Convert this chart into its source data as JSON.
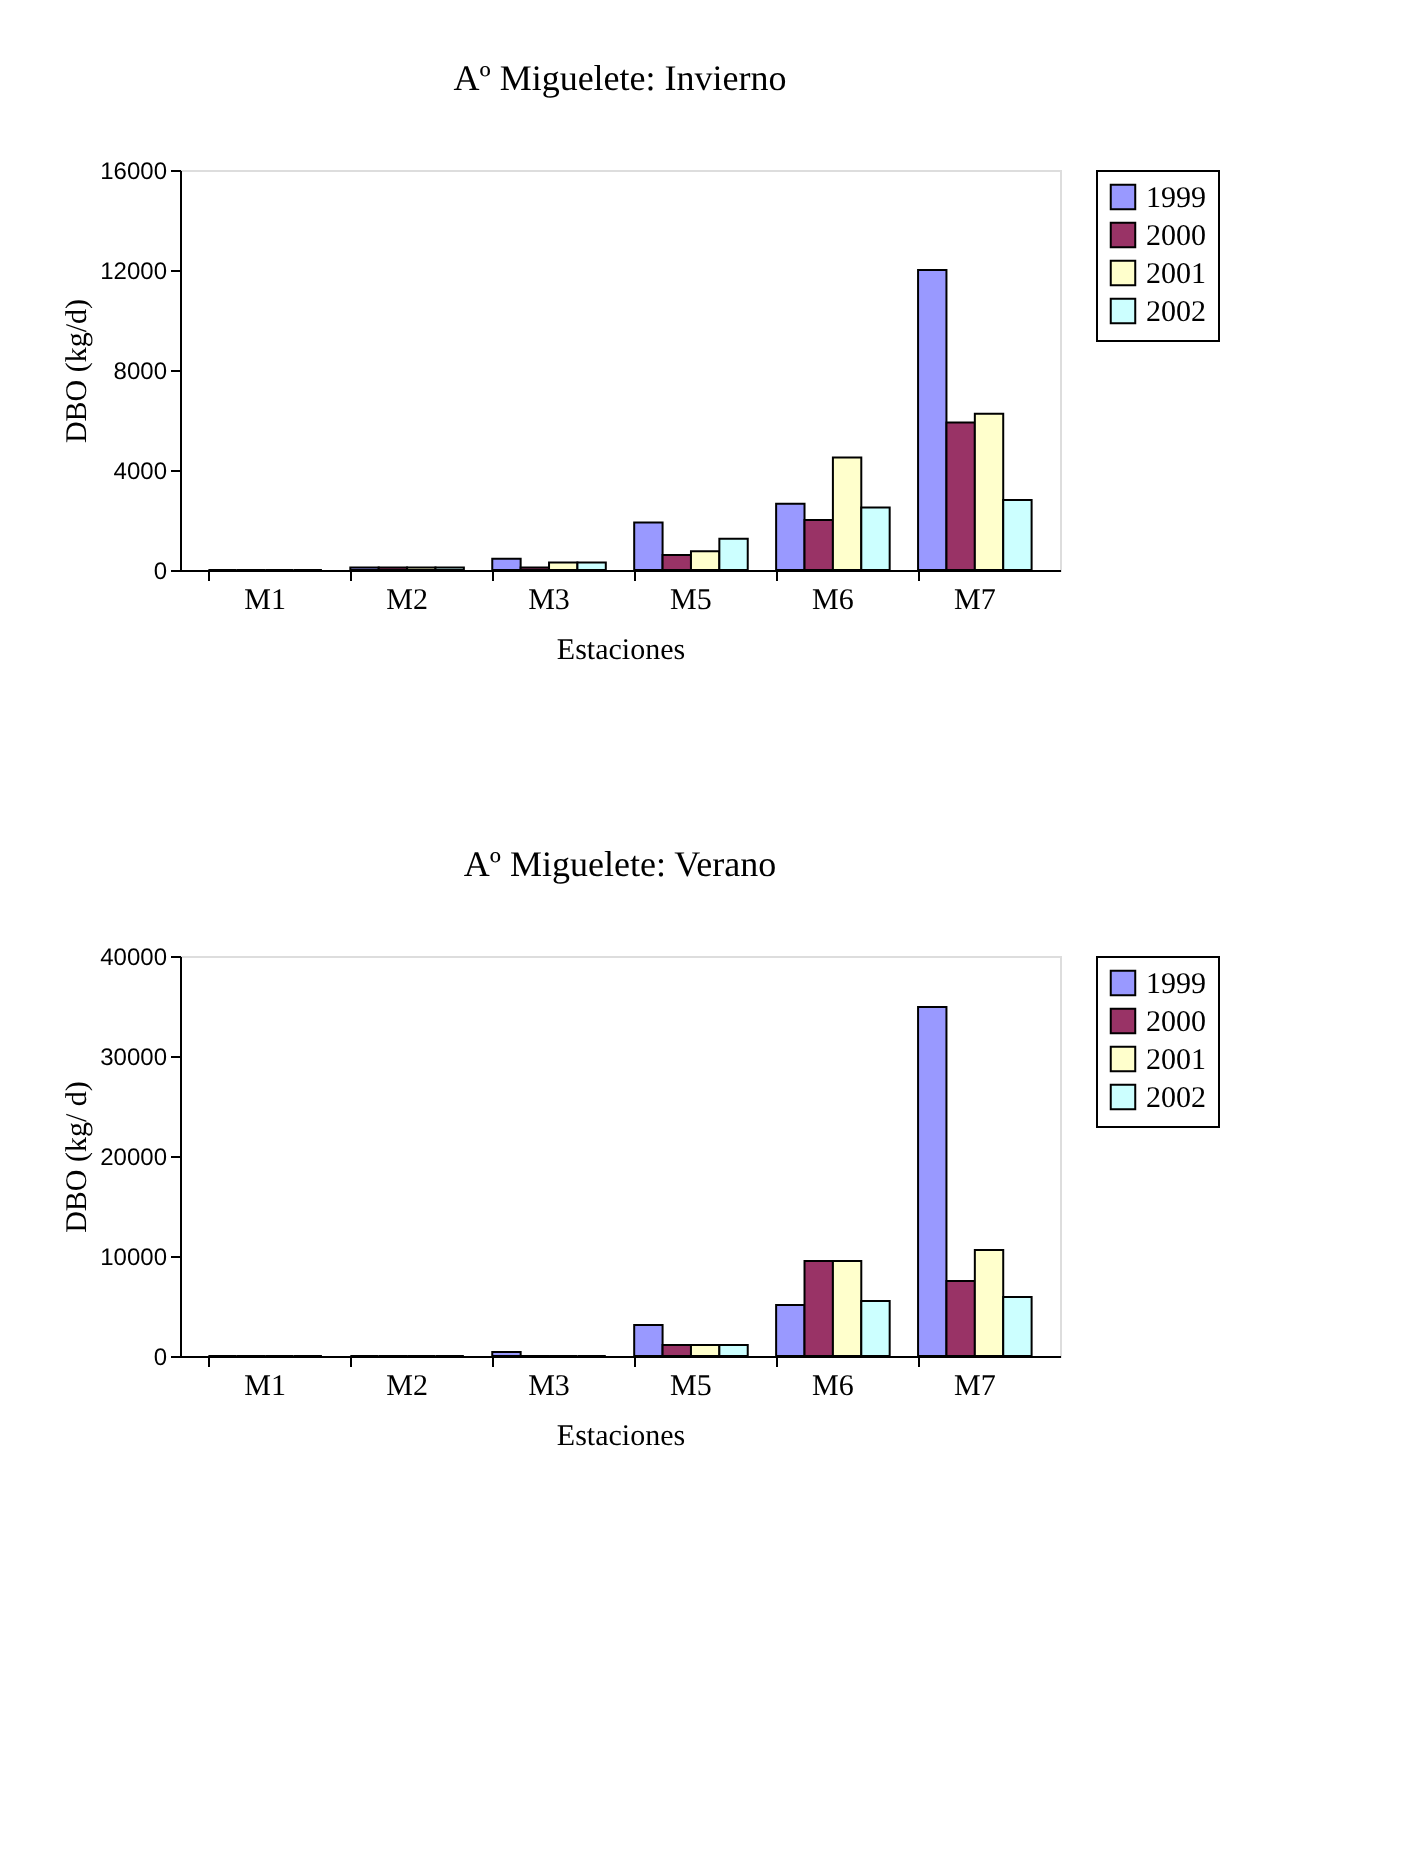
{
  "chart_data": [
    {
      "type": "bar",
      "title": "Aº Miguelete: Invierno",
      "xlabel": "Estaciones",
      "ylabel": "DBO (kg/d)",
      "categories": [
        "M1",
        "M2",
        "M3",
        "M5",
        "M6",
        "M7"
      ],
      "series": [
        {
          "name": "1999",
          "color": "#9999ff",
          "values": [
            0,
            100,
            450,
            1900,
            2650,
            12000
          ]
        },
        {
          "name": "2000",
          "color": "#993366",
          "values": [
            0,
            100,
            100,
            600,
            2000,
            5900
          ]
        },
        {
          "name": "2001",
          "color": "#ffffcc",
          "values": [
            0,
            100,
            300,
            750,
            4500,
            6250
          ]
        },
        {
          "name": "2002",
          "color": "#ccffff",
          "values": [
            0,
            100,
            300,
            1250,
            2500,
            2800
          ]
        }
      ],
      "ylim": [
        0,
        16000
      ],
      "yticks": [
        0,
        4000,
        8000,
        12000,
        16000
      ],
      "grid": false,
      "legend": "right"
    },
    {
      "type": "bar",
      "title": "Aº Miguelete: Verano",
      "xlabel": "Estaciones",
      "ylabel": "DBO (kg/ d)",
      "categories": [
        "M1",
        "M2",
        "M3",
        "M5",
        "M6",
        "M7"
      ],
      "series": [
        {
          "name": "1999",
          "color": "#9999ff",
          "values": [
            0,
            0,
            400,
            3100,
            5100,
            34900
          ]
        },
        {
          "name": "2000",
          "color": "#993366",
          "values": [
            0,
            0,
            0,
            1100,
            9500,
            7500
          ]
        },
        {
          "name": "2001",
          "color": "#ffffcc",
          "values": [
            0,
            0,
            0,
            1100,
            9500,
            10600
          ]
        },
        {
          "name": "2002",
          "color": "#ccffff",
          "values": [
            0,
            0,
            0,
            1100,
            5500,
            5900
          ]
        }
      ],
      "ylim": [
        0,
        40000
      ],
      "yticks": [
        0,
        10000,
        20000,
        30000,
        40000
      ],
      "grid": false,
      "legend": "right"
    }
  ]
}
